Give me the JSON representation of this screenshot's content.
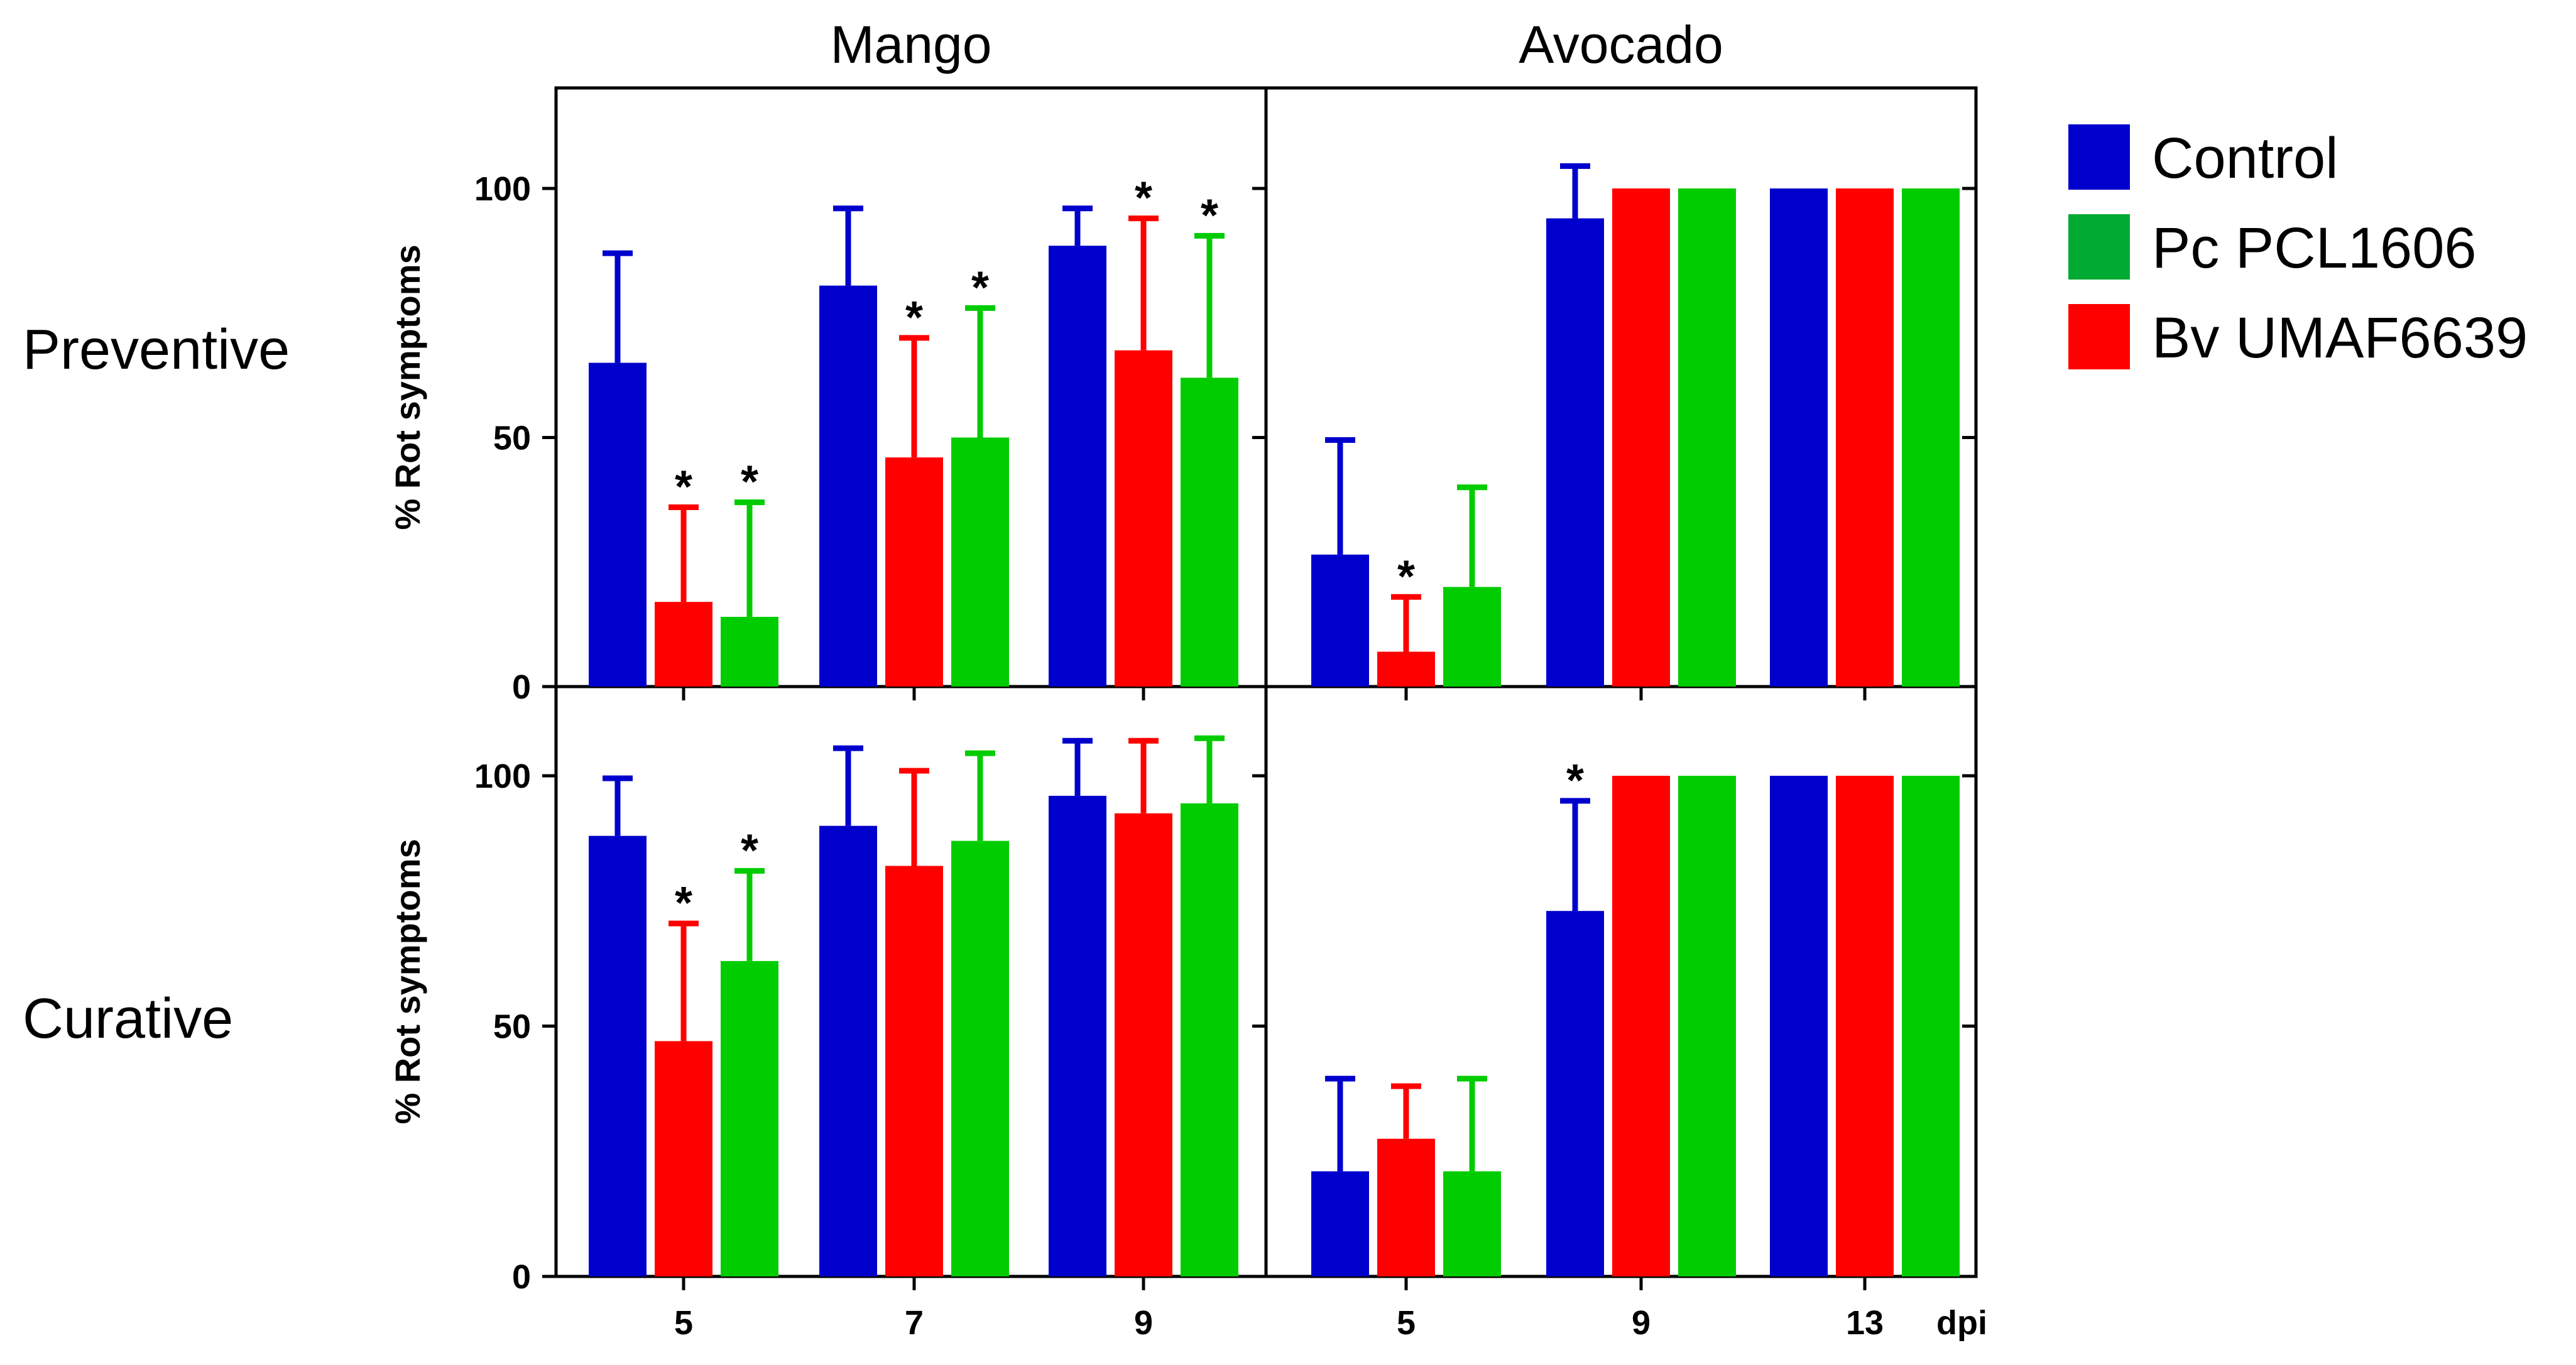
{
  "chart_data": {
    "type": "bar",
    "column_titles": [
      "Mango",
      "Avocado"
    ],
    "row_labels": [
      "Preventive",
      "Curative"
    ],
    "ylabel": "% Rot symptoms",
    "x_unit": "dpi",
    "yticks": [
      "0",
      "50",
      "100"
    ],
    "ylim": [
      0,
      120
    ],
    "legend": {
      "position": "right",
      "entries": [
        {
          "name": "Control",
          "color": "#0000cc"
        },
        {
          "name": "Pc PCL1606",
          "color": "#00aa33"
        },
        {
          "name": "Bv UMAF6639",
          "color": "#ff0000"
        }
      ]
    },
    "series_colors": {
      "Control": "#0000cc",
      "Bv UMAF6639": "#ff0000",
      "Pc PCL1606": "#00cc00"
    },
    "panels": [
      {
        "row": "Preventive",
        "crop": "Mango",
        "categories": [
          "5",
          "7",
          "9"
        ],
        "series": [
          {
            "name": "Control",
            "values": [
              65,
              80.5,
              88.5
            ],
            "err": [
              22,
              15.5,
              7.5
            ],
            "sig": [
              false,
              false,
              false
            ]
          },
          {
            "name": "Bv UMAF6639",
            "values": [
              17,
              46,
              67.5
            ],
            "err": [
              19,
              24,
              26.5
            ],
            "sig": [
              true,
              true,
              true
            ]
          },
          {
            "name": "Pc PCL1606",
            "values": [
              14,
              50,
              62
            ],
            "err": [
              23,
              26,
              28.5
            ],
            "sig": [
              true,
              true,
              true
            ]
          }
        ]
      },
      {
        "row": "Preventive",
        "crop": "Avocado",
        "categories": [
          "5",
          "9",
          "13"
        ],
        "series": [
          {
            "name": "Control",
            "values": [
              26.5,
              94,
              100
            ],
            "err": [
              23,
              10.5,
              0
            ],
            "sig": [
              false,
              false,
              false
            ]
          },
          {
            "name": "Bv UMAF6639",
            "values": [
              7,
              100,
              100
            ],
            "err": [
              11,
              0,
              0
            ],
            "sig": [
              true,
              false,
              false
            ]
          },
          {
            "name": "Pc PCL1606",
            "values": [
              20,
              100,
              100
            ],
            "err": [
              20,
              0,
              0
            ],
            "sig": [
              false,
              false,
              false
            ]
          }
        ]
      },
      {
        "row": "Curative",
        "crop": "Mango",
        "categories": [
          "5",
          "7",
          "9"
        ],
        "series": [
          {
            "name": "Control",
            "values": [
              88,
              90,
              96
            ],
            "err": [
              11.5,
              15.5,
              11
            ],
            "sig": [
              false,
              false,
              false
            ]
          },
          {
            "name": "Bv UMAF6639",
            "values": [
              47,
              82,
              92.5
            ],
            "err": [
              23.5,
              19,
              14.5
            ],
            "sig": [
              true,
              false,
              false
            ]
          },
          {
            "name": "Pc PCL1606",
            "values": [
              63,
              87,
              94.5
            ],
            "err": [
              18,
              17.5,
              13
            ],
            "sig": [
              true,
              false,
              false
            ]
          }
        ]
      },
      {
        "row": "Curative",
        "crop": "Avocado",
        "categories": [
          "5",
          "9",
          "13"
        ],
        "series": [
          {
            "name": "Control",
            "values": [
              21,
              73,
              100
            ],
            "err": [
              18.5,
              22,
              0
            ],
            "sig": [
              false,
              true,
              false
            ]
          },
          {
            "name": "Bv UMAF6639",
            "values": [
              27.5,
              100,
              100
            ],
            "err": [
              10.5,
              0,
              0
            ],
            "sig": [
              false,
              false,
              false
            ]
          },
          {
            "name": "Pc PCL1606",
            "values": [
              21,
              100,
              100
            ],
            "err": [
              18.5,
              0,
              0
            ],
            "sig": [
              false,
              false,
              false
            ]
          }
        ]
      }
    ]
  }
}
